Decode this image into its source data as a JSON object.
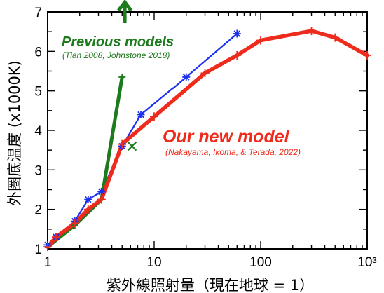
{
  "chart_data": {
    "type": "line",
    "xlabel": "紫外線照射量（現在地球 = 1）",
    "ylabel": "外圏底温度 (x1000K)",
    "xscale": "log",
    "xlim": [
      1,
      1000
    ],
    "ylim": [
      1,
      7
    ],
    "x_tick_labels": [
      "1",
      "10",
      "100",
      "10³"
    ],
    "y_tick_labels": [
      "1",
      "2",
      "3",
      "4",
      "5",
      "6",
      "7"
    ],
    "grid": false,
    "series": [
      {
        "key": "red",
        "color": "#ee2b1c",
        "x": [
          1,
          1.2,
          1.8,
          2.4,
          3.2,
          5,
          10,
          30,
          60,
          100,
          300,
          500,
          1000
        ],
        "y": [
          1.05,
          1.3,
          1.65,
          2.0,
          2.25,
          3.65,
          4.35,
          5.45,
          5.9,
          6.28,
          6.52,
          6.35,
          5.9
        ]
      },
      {
        "key": "blue",
        "color": "#1a2ff0",
        "x": [
          1,
          1.2,
          1.8,
          2.4,
          3.2,
          5,
          7.5,
          20,
          60
        ],
        "y": [
          1.1,
          1.3,
          1.7,
          2.25,
          2.45,
          3.6,
          4.4,
          5.35,
          6.45
        ],
        "gap_from_x": 15,
        "gap_to_x": 21
      },
      {
        "key": "green",
        "color": "#1d7a1d",
        "x": [
          1,
          1.8,
          3.2,
          5
        ],
        "y": [
          1.05,
          1.6,
          2.25,
          5.35
        ]
      }
    ],
    "extra_markers": [
      {
        "shape": "x",
        "color": "#1d7a1d",
        "x": 6.2,
        "y": 3.6
      },
      {
        "shape": "up-arrow",
        "color": "#1d7a1d",
        "x": 5.3,
        "y": 7
      }
    ],
    "annotations": [
      {
        "key": "new_model",
        "title": "Our new model",
        "subtitle": "(Nakayama, Ikoma, & Terada, 2022)",
        "color": "#ee2b1c"
      },
      {
        "key": "previous",
        "title": "Previous models",
        "subtitle": "(Tian 2008; Johnstone 2018)",
        "color": "#1d7a1d"
      }
    ]
  }
}
